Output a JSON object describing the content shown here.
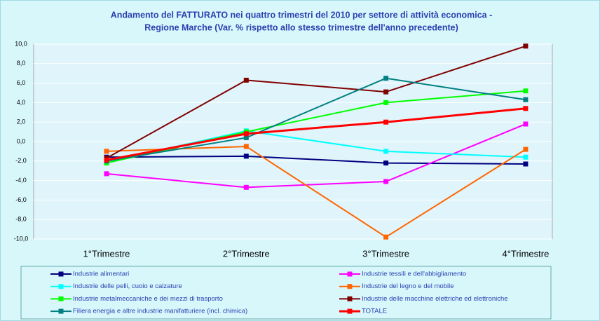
{
  "chart_data": {
    "type": "line",
    "title": "Andamento del FATTURATO nei quattro trimestri del 2010 per settore di attività economica -",
    "subtitle": "Regione Marche (Var. % rispetto allo stesso trimestre dell'anno precedente)",
    "categories": [
      "1°Trimestre",
      "2°Trimestre",
      "3°Trimestre",
      "4°Trimestre"
    ],
    "ylim": [
      -10,
      10
    ],
    "yticks": [
      {
        "value": -10,
        "label": "-10,0"
      },
      {
        "value": -8,
        "label": "-8,0"
      },
      {
        "value": -6,
        "label": "-6,0"
      },
      {
        "value": -4,
        "label": "-4,0"
      },
      {
        "value": -2,
        "label": "-2,0"
      },
      {
        "value": 0,
        "label": "0,0"
      },
      {
        "value": 2,
        "label": "2,0"
      },
      {
        "value": 4,
        "label": "4,0"
      },
      {
        "value": 6,
        "label": "6,0"
      },
      {
        "value": 8,
        "label": "8,0"
      },
      {
        "value": 10,
        "label": "10,0"
      }
    ],
    "grid": true,
    "series": [
      {
        "name": "Industrie alimentari",
        "color": "#000080",
        "values": [
          -1.6,
          -1.5,
          -2.2,
          -2.3
        ]
      },
      {
        "name": "Industrie tessili e dell'abbigliamento",
        "color": "#ff00ff",
        "values": [
          -3.3,
          -4.7,
          -4.1,
          1.8
        ]
      },
      {
        "name": "Industrie delle pelli, cuoio e calzature",
        "color": "#00ffff",
        "values": [
          -2.1,
          1.1,
          -1.0,
          -1.6
        ]
      },
      {
        "name": "Industrie del legno e del mobile",
        "color": "#ff6600",
        "values": [
          -1.0,
          -0.5,
          -9.8,
          -0.8
        ]
      },
      {
        "name": "Industrie metalmeccaniche e dei mezzi di trasporto",
        "color": "#00ff00",
        "values": [
          -2.2,
          1.0,
          4.0,
          5.2
        ]
      },
      {
        "name": "Industrie delle macchine elettriche ed elettroniche",
        "color": "#800000",
        "values": [
          -1.7,
          6.3,
          5.1,
          9.8
        ]
      },
      {
        "name": "Filiera energia e altre industrie manifatturiere (incl. chimica)",
        "color": "#008080",
        "values": [
          -2.0,
          0.4,
          6.5,
          4.3
        ]
      },
      {
        "name": "TOTALE",
        "color": "#ff0000",
        "values": [
          -1.9,
          0.8,
          2.0,
          3.4
        ]
      }
    ]
  }
}
